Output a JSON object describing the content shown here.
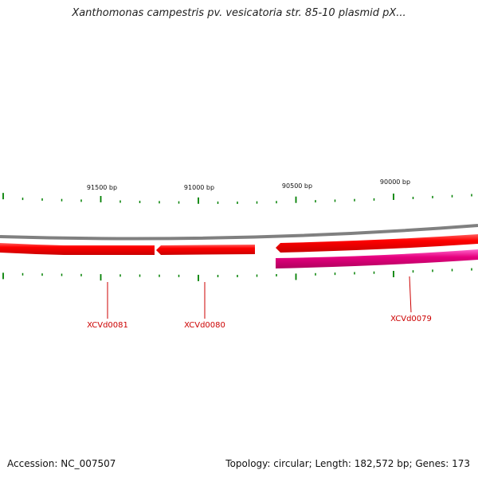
{
  "title": "Xanthomonas campestris pv. vesicatoria str. 85-10 plasmid pX...",
  "footer": {
    "accession": "Accession: NC_007507",
    "stats": "Topology: circular; Length: 182,572 bp; Genes: 173"
  },
  "ruler": {
    "labels": [
      "91500 bp",
      "91000 bp",
      "90500 bp",
      "90000 bp"
    ],
    "tick_color": "#008000"
  },
  "genes": [
    {
      "name": "XCVd0081",
      "color": "#ff0000"
    },
    {
      "name": "XCVd0080",
      "color": "#ff0000"
    },
    {
      "name": "",
      "color": "#ff0000"
    },
    {
      "name": "XCVd0079",
      "color": "#ff00aa"
    }
  ],
  "backbone_color": "#808080"
}
